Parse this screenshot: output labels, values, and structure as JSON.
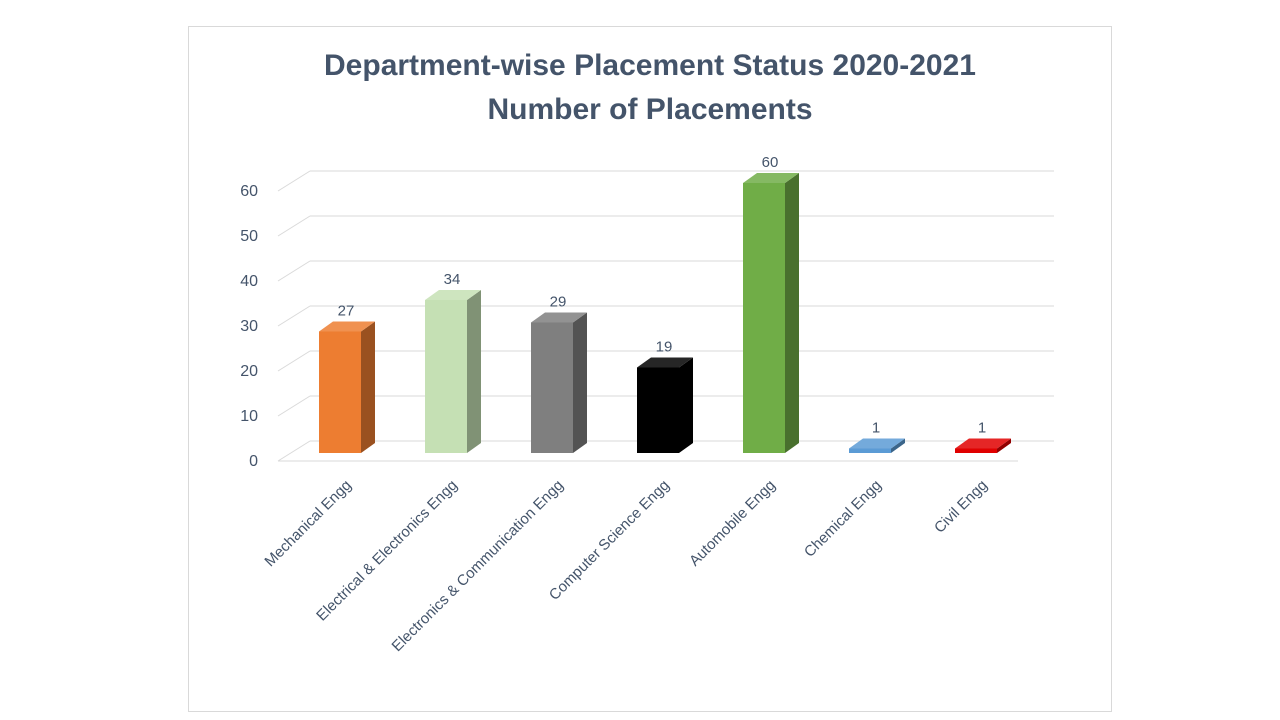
{
  "chart_data": {
    "type": "bar",
    "title": "Department-wise Placement Status 2020-2021",
    "subtitle": "Number of Placements",
    "xlabel": "",
    "ylabel": "",
    "ylim": [
      0,
      60
    ],
    "yticks": [
      0,
      10,
      20,
      30,
      40,
      50,
      60
    ],
    "grid": true,
    "style": "3d-column",
    "categories": [
      "Mechanical Engg",
      "Electrical & Electronics Engg",
      "Electronics & Communication Engg",
      "Computer Science Engg",
      "Automobile Engg",
      "Chemical Engg",
      "Civil Engg"
    ],
    "values": [
      27,
      34,
      29,
      19,
      60,
      1,
      1
    ],
    "data_labels": [
      "27",
      "34",
      "29",
      "19",
      "60",
      "1",
      "1"
    ],
    "colors": [
      "#ed7d31",
      "#c5e0b4",
      "#7f7f7f",
      "#000000",
      "#70ad47",
      "#5b9bd5",
      "#e00000"
    ]
  }
}
